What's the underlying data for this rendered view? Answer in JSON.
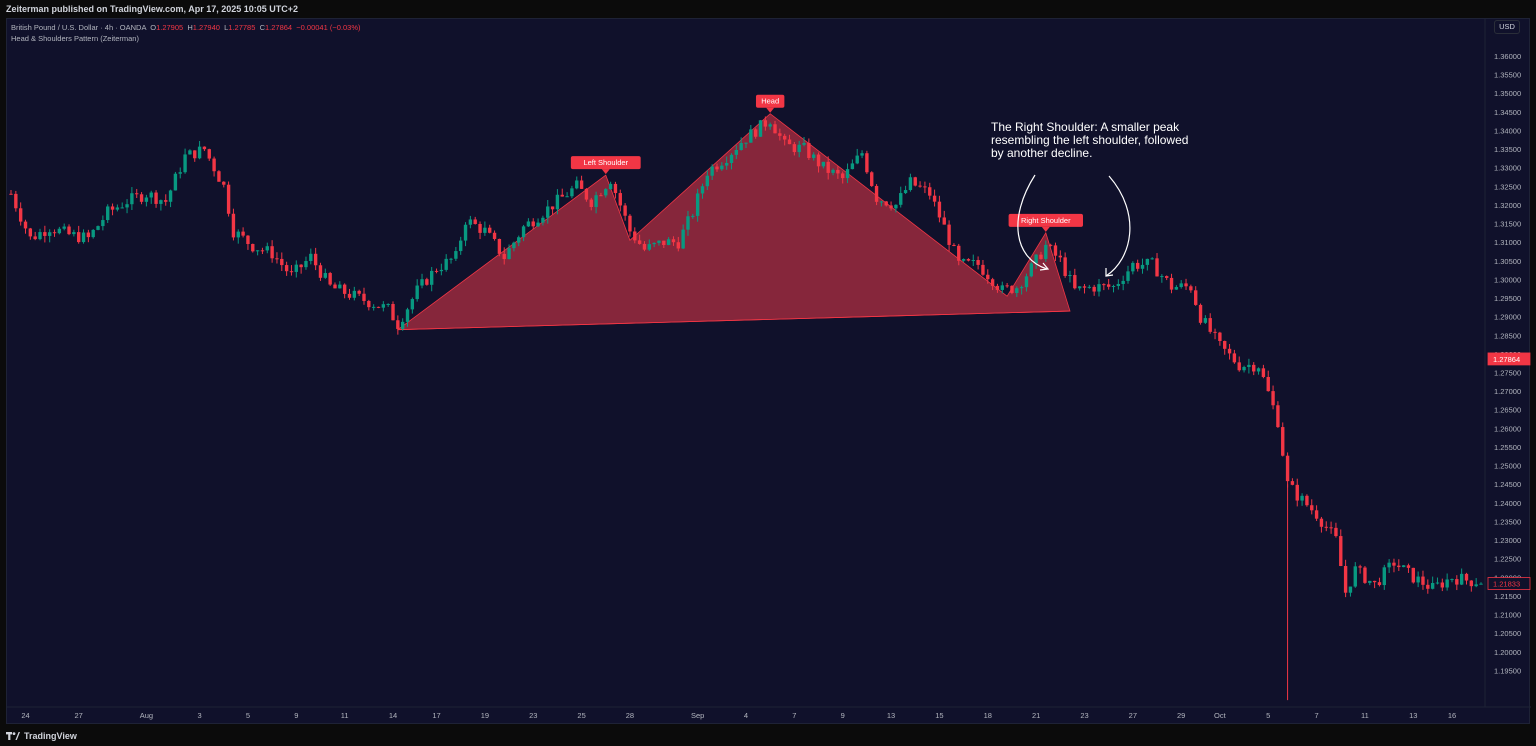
{
  "header": {
    "published_by": "Zeiterman published on TradingView.com, Apr 17, 2025 10:05 UTC+2"
  },
  "legend": {
    "symbol": "British Pound / U.S. Dollar · 4h · OANDA",
    "open_label": "O",
    "open": "1.27905",
    "high_label": "H",
    "high": "1.27940",
    "low_label": "L",
    "low": "1.27785",
    "close_label": "C",
    "close": "1.27864",
    "change": "−0.00041 (−0.03%)",
    "indicator": "Head & Shoulders Pattern (Zeiterman)"
  },
  "price_axis": {
    "currency": "USD",
    "ticks": [
      "1.36000",
      "1.35500",
      "1.35000",
      "1.34500",
      "1.34000",
      "1.33500",
      "1.33000",
      "1.32500",
      "1.32000",
      "1.31500",
      "1.31000",
      "1.30500",
      "1.30000",
      "1.29500",
      "1.29000",
      "1.28500",
      "1.28000",
      "1.27500",
      "1.27000",
      "1.26500",
      "1.26000",
      "1.25500",
      "1.25000",
      "1.24500",
      "1.24000",
      "1.23500",
      "1.23000",
      "1.22500",
      "1.22000",
      "1.21500",
      "1.21000",
      "1.20500",
      "1.20000",
      "1.19500"
    ],
    "current_price_label": "1.27864",
    "second_price_label": "1.21833"
  },
  "time_axis": {
    "labels": [
      {
        "text": "24",
        "bar": 3
      },
      {
        "text": "27",
        "bar": 14
      },
      {
        "text": "Aug",
        "bar": 28
      },
      {
        "text": "3",
        "bar": 39
      },
      {
        "text": "5",
        "bar": 49
      },
      {
        "text": "9",
        "bar": 59
      },
      {
        "text": "11",
        "bar": 69
      },
      {
        "text": "14",
        "bar": 79
      },
      {
        "text": "17",
        "bar": 88
      },
      {
        "text": "19",
        "bar": 98
      },
      {
        "text": "23",
        "bar": 108
      },
      {
        "text": "25",
        "bar": 118
      },
      {
        "text": "28",
        "bar": 128
      },
      {
        "text": "Sep",
        "bar": 142
      },
      {
        "text": "4",
        "bar": 152
      },
      {
        "text": "7",
        "bar": 162
      },
      {
        "text": "9",
        "bar": 172
      },
      {
        "text": "13",
        "bar": 182
      },
      {
        "text": "15",
        "bar": 192
      },
      {
        "text": "18",
        "bar": 202
      },
      {
        "text": "21",
        "bar": 212
      },
      {
        "text": "23",
        "bar": 222
      },
      {
        "text": "27",
        "bar": 232
      },
      {
        "text": "29",
        "bar": 242
      },
      {
        "text": "Oct",
        "bar": 250
      },
      {
        "text": "5",
        "bar": 260
      },
      {
        "text": "7",
        "bar": 270
      },
      {
        "text": "11",
        "bar": 280
      },
      {
        "text": "13",
        "bar": 290
      },
      {
        "text": "16",
        "bar": 298
      }
    ]
  },
  "annotations": {
    "head_label": "Head",
    "left_shoulder_label": "Left Shoulder",
    "right_shoulder_label": "Right Shoulder",
    "note": [
      "The Right Shoulder: A smaller peak",
      "resembling the left shoulder, followed",
      "by another decline."
    ]
  },
  "footer": {
    "brand": "TradingView"
  },
  "colors": {
    "background": "#10112b",
    "up": "#089981",
    "down": "#f23645",
    "pattern_fill": "#9b2a3e",
    "label_bg": "#f23645"
  },
  "chart_data": {
    "type": "candlestick",
    "title": "British Pound / U.S. Dollar · 4h · OANDA",
    "ylim": [
      1.19,
      1.365
    ],
    "x_range_bars": [
      0,
      304
    ],
    "series": [
      {
        "name": "GBPUSD",
        "close_path": [
          [
            0,
            1.323
          ],
          [
            4,
            1.311
          ],
          [
            8,
            1.314
          ],
          [
            12,
            1.312
          ],
          [
            16,
            1.311
          ],
          [
            20,
            1.318
          ],
          [
            24,
            1.321
          ],
          [
            28,
            1.323
          ],
          [
            32,
            1.321
          ],
          [
            36,
            1.333
          ],
          [
            40,
            1.335
          ],
          [
            44,
            1.325
          ],
          [
            46,
            1.313
          ],
          [
            50,
            1.309
          ],
          [
            54,
            1.307
          ],
          [
            58,
            1.301
          ],
          [
            62,
            1.306
          ],
          [
            66,
            1.298
          ],
          [
            70,
            1.296
          ],
          [
            74,
            1.294
          ],
          [
            78,
            1.292
          ],
          [
            80,
            1.288
          ],
          [
            84,
            1.297
          ],
          [
            88,
            1.303
          ],
          [
            92,
            1.306
          ],
          [
            94,
            1.316
          ],
          [
            98,
            1.313
          ],
          [
            102,
            1.306
          ],
          [
            106,
            1.314
          ],
          [
            110,
            1.318
          ],
          [
            114,
            1.322
          ],
          [
            117,
            1.325
          ],
          [
            120,
            1.321
          ],
          [
            124,
            1.327
          ],
          [
            128,
            1.313
          ],
          [
            131,
            1.308
          ],
          [
            135,
            1.31
          ],
          [
            138,
            1.31
          ],
          [
            141,
            1.318
          ],
          [
            144,
            1.329
          ],
          [
            148,
            1.333
          ],
          [
            151,
            1.337
          ],
          [
            155,
            1.341
          ],
          [
            157,
            1.343
          ],
          [
            160,
            1.336
          ],
          [
            164,
            1.335
          ],
          [
            168,
            1.33
          ],
          [
            172,
            1.327
          ],
          [
            176,
            1.334
          ],
          [
            179,
            1.322
          ],
          [
            183,
            1.32
          ],
          [
            186,
            1.326
          ],
          [
            190,
            1.323
          ],
          [
            193,
            1.314
          ],
          [
            196,
            1.304
          ],
          [
            200,
            1.304
          ],
          [
            203,
            1.3
          ],
          [
            205,
            1.297
          ],
          [
            208,
            1.298
          ],
          [
            211,
            1.303
          ],
          [
            214,
            1.309
          ],
          [
            217,
            1.305
          ],
          [
            220,
            1.297
          ],
          [
            224,
            1.298
          ],
          [
            228,
            1.298
          ],
          [
            232,
            1.304
          ],
          [
            236,
            1.304
          ],
          [
            240,
            1.298
          ],
          [
            244,
            1.298
          ],
          [
            246,
            1.29
          ],
          [
            250,
            1.282
          ],
          [
            254,
            1.277
          ],
          [
            258,
            1.277
          ],
          [
            262,
            1.262
          ],
          [
            264,
            1.245
          ],
          [
            266,
            1.242
          ],
          [
            270,
            1.237
          ],
          [
            274,
            1.23
          ],
          [
            276,
            1.216
          ],
          [
            278,
            1.222
          ],
          [
            282,
            1.218
          ],
          [
            286,
            1.224
          ],
          [
            290,
            1.22
          ],
          [
            294,
            1.217
          ],
          [
            298,
            1.22
          ],
          [
            302,
            1.219
          ]
        ]
      }
    ],
    "pattern": {
      "name": "Head & Shoulders",
      "points": [
        {
          "label": "",
          "bar": 80,
          "price": 1.2865
        },
        {
          "label": "Left Shoulder",
          "bar": 123,
          "price": 1.328
        },
        {
          "label": "",
          "bar": 128,
          "price": 1.3105
        },
        {
          "label": "Head",
          "bar": 157,
          "price": 1.3445
        },
        {
          "label": "",
          "bar": 206,
          "price": 1.2955
        },
        {
          "label": "Right Shoulder",
          "bar": 214,
          "price": 1.3125
        },
        {
          "label": "",
          "bar": 219,
          "price": 1.2915
        }
      ]
    }
  }
}
